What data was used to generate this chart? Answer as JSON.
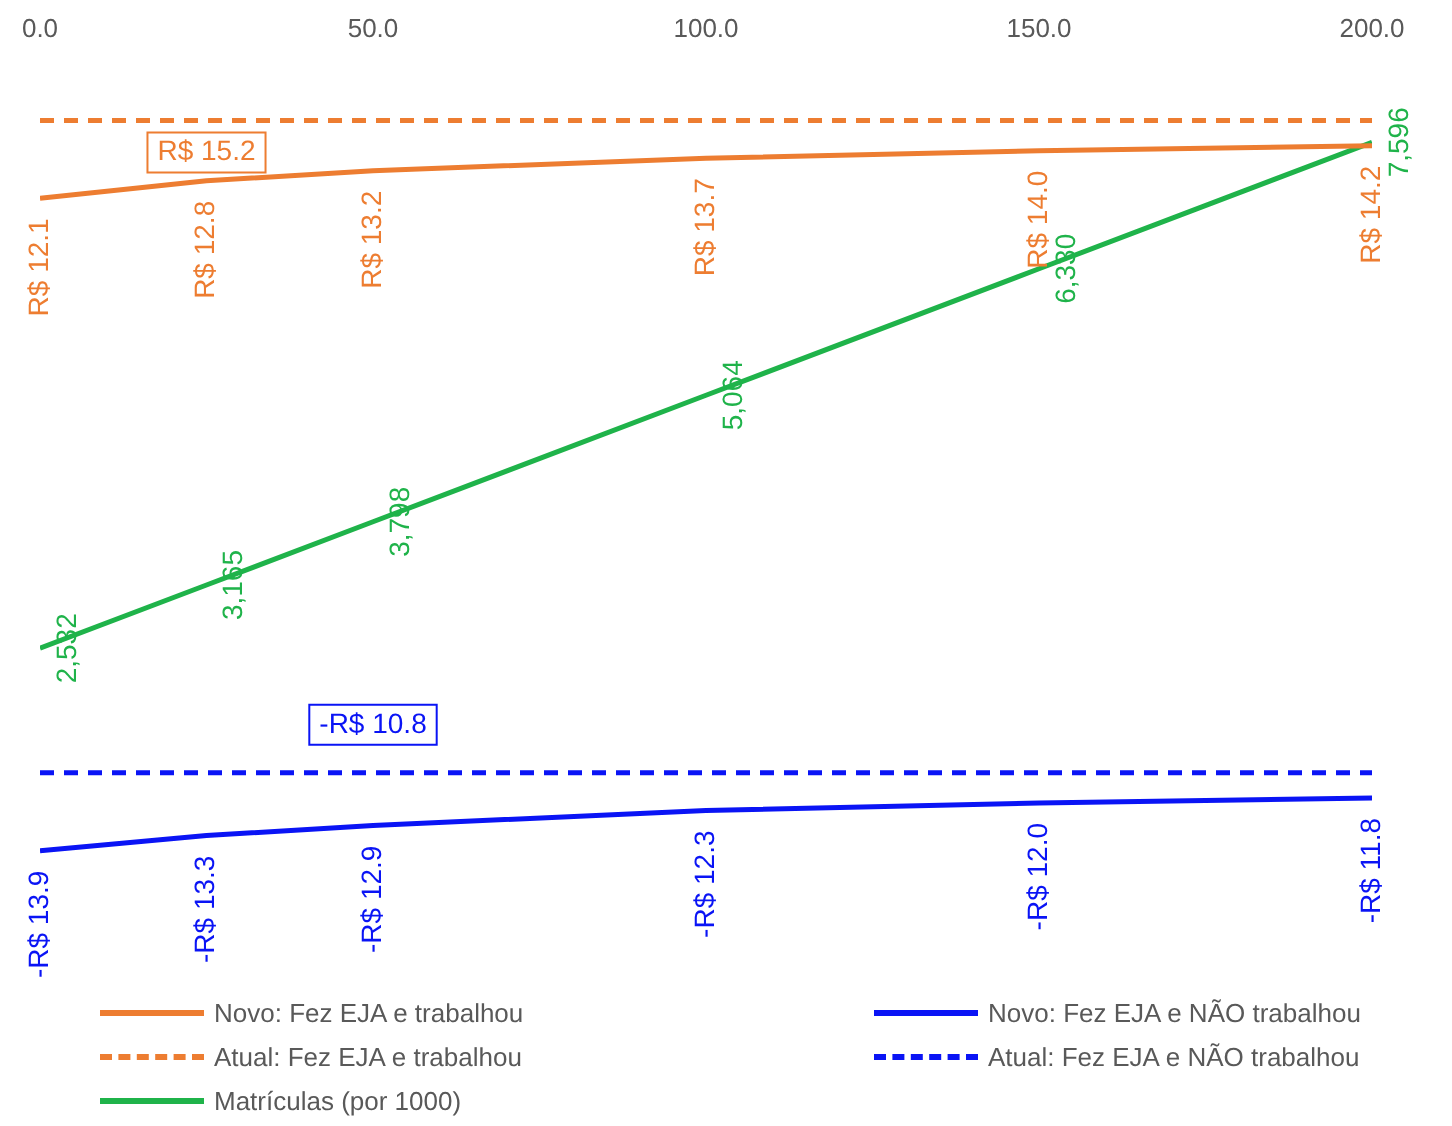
{
  "chart_data": {
    "type": "line",
    "x": [
      0,
      25,
      50,
      100,
      150,
      200
    ],
    "xlim": [
      0,
      200
    ],
    "xticks": [
      {
        "value": 0,
        "label": "0.0"
      },
      {
        "value": 50,
        "label": "50.0"
      },
      {
        "value": 100,
        "label": "100.0"
      },
      {
        "value": 150,
        "label": "150.0"
      },
      {
        "value": 200,
        "label": "200.0"
      }
    ],
    "tick_labels": "x",
    "grid": false,
    "marker": "none",
    "legend": "bottom",
    "series": [
      {
        "name": "Novo: Fez EJA e trabalhou",
        "color": "#ed7d31",
        "line_style": "solid",
        "values": [
          12.1,
          12.8,
          13.2,
          13.7,
          14.0,
          14.2
        ],
        "value_labels": [
          "R$ 12.1",
          "R$ 12.8",
          "R$ 13.2",
          "R$ 13.7",
          "R$ 14.0",
          "R$ 14.2"
        ]
      },
      {
        "name": "Atual: Fez EJA e trabalhou",
        "color": "#ed7d31",
        "line_style": "dashed",
        "values": [
          15.2,
          15.2,
          15.2,
          15.2,
          15.2,
          15.2
        ],
        "value_labels": [
          null,
          "R$ 15.2",
          null,
          null,
          null,
          null
        ]
      },
      {
        "name": "Matrículas (por 1000)",
        "color": "#1fb34a",
        "line_style": "solid",
        "axis": "y2",
        "values": [
          2532,
          3165,
          3798,
          5064,
          6330,
          7596
        ],
        "value_labels": [
          "2,532",
          "3,165",
          "3,798",
          "5,064",
          "6,330",
          "7,596"
        ]
      },
      {
        "name": "Novo: Fez EJA e NÃO trabalhou",
        "color": "#0a14f5",
        "line_style": "solid",
        "values": [
          -13.9,
          -13.3,
          -12.9,
          -12.3,
          -12.0,
          -11.8
        ],
        "value_labels": [
          "-R$ 13.9",
          "-R$ 13.3",
          "-R$ 12.9",
          "-R$ 12.3",
          "-R$ 12.0",
          "-R$ 11.8"
        ]
      },
      {
        "name": "Atual: Fez EJA e NÃO trabalhou",
        "color": "#0a14f5",
        "line_style": "dashed",
        "values": [
          -10.8,
          -10.8,
          -10.8,
          -10.8,
          -10.8,
          -10.8
        ],
        "value_labels": [
          null,
          null,
          "-R$ 10.8",
          null,
          null,
          null
        ]
      }
    ]
  }
}
